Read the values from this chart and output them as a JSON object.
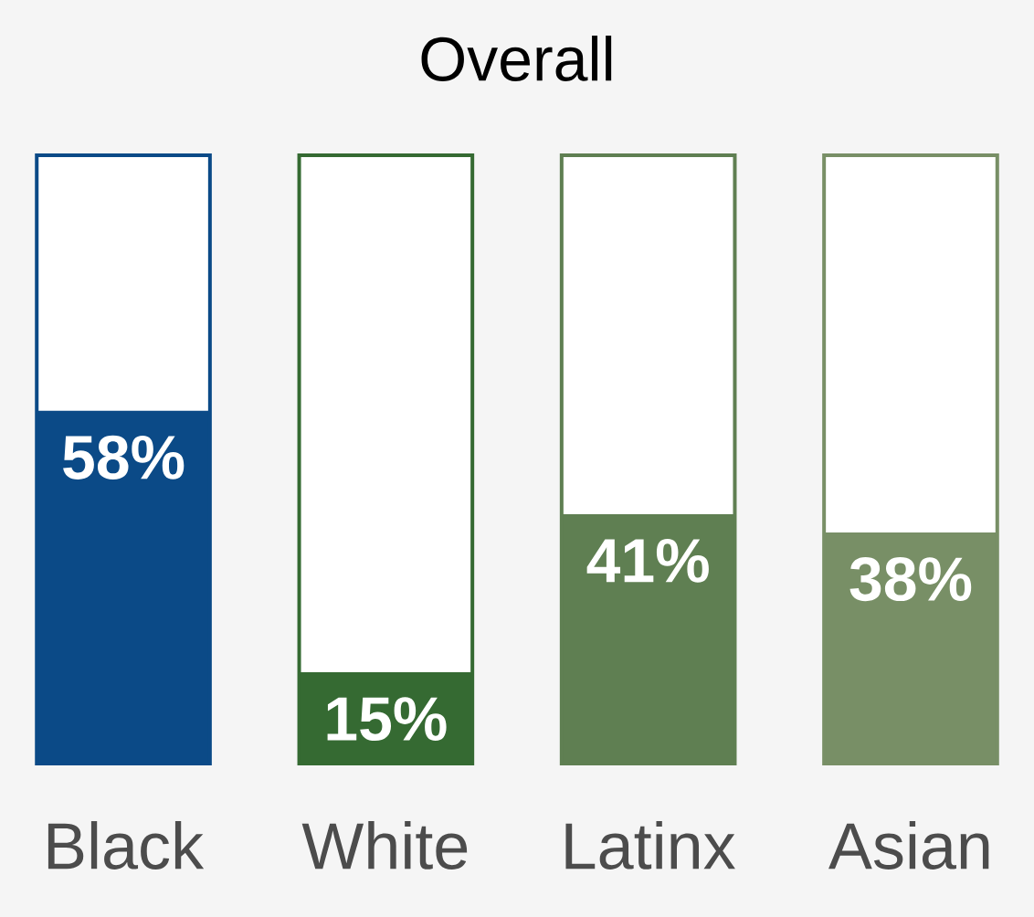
{
  "chart_data": {
    "type": "bar",
    "title": "Overall",
    "categories": [
      "Black",
      "White",
      "Latinx",
      "Asian"
    ],
    "values": [
      58,
      15,
      41,
      38
    ],
    "value_labels": [
      "58%",
      "15%",
      "41%",
      "38%"
    ],
    "colors": [
      "#0b4a87",
      "#356a32",
      "#5f7f52",
      "#788f66"
    ],
    "ylim": [
      0,
      100
    ]
  }
}
